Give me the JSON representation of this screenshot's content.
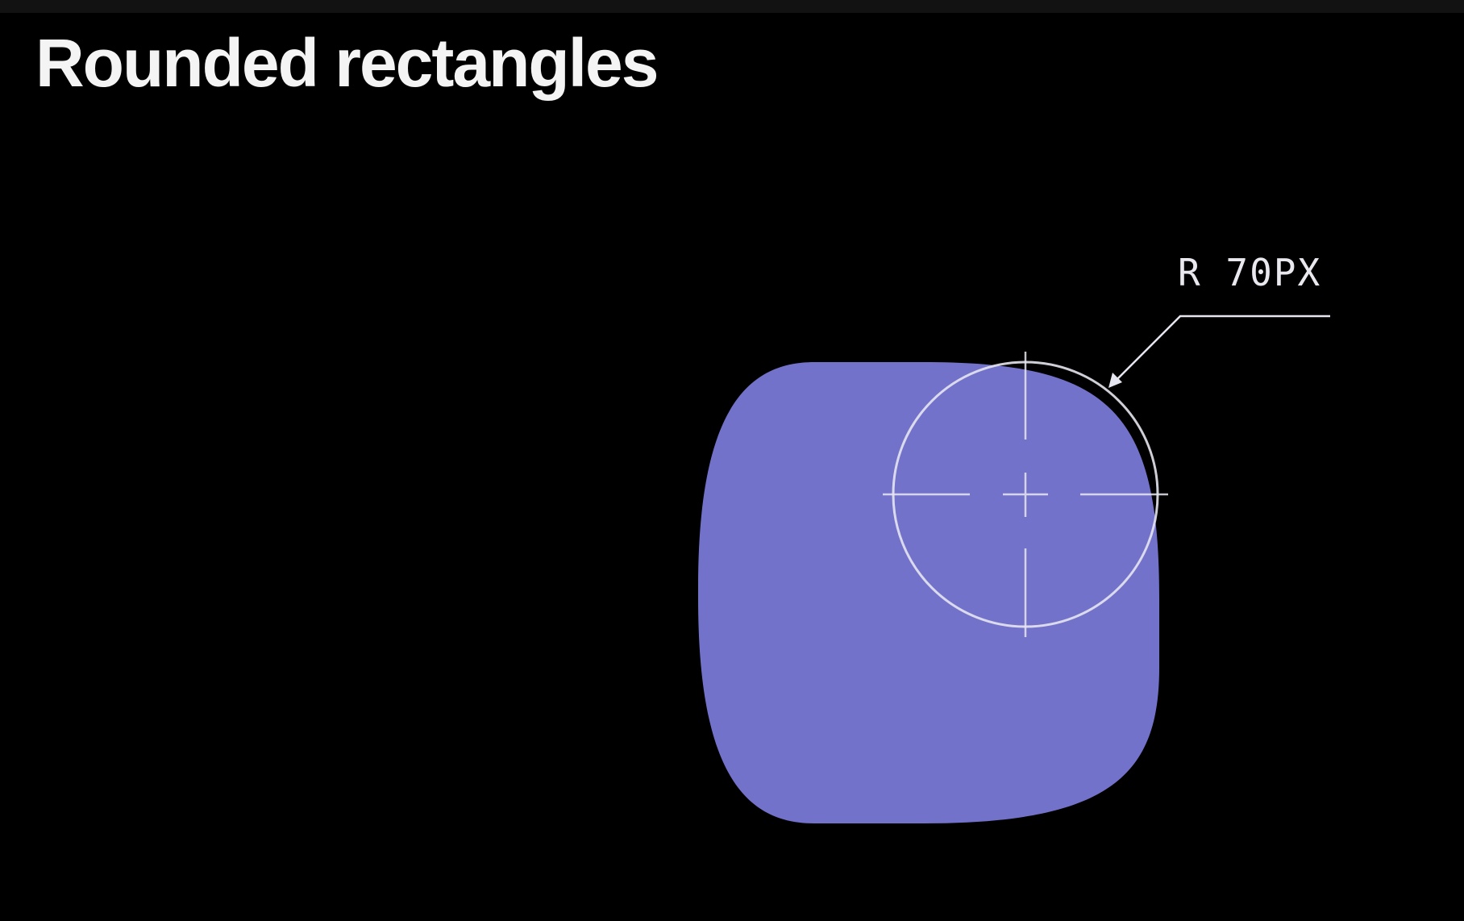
{
  "slide": {
    "title": "Rounded rectangles"
  },
  "diagram": {
    "radius_label": "R 70PX",
    "shape_color": "#7372CA",
    "guide_color": "#E6E6F0",
    "background_color": "#000000"
  }
}
